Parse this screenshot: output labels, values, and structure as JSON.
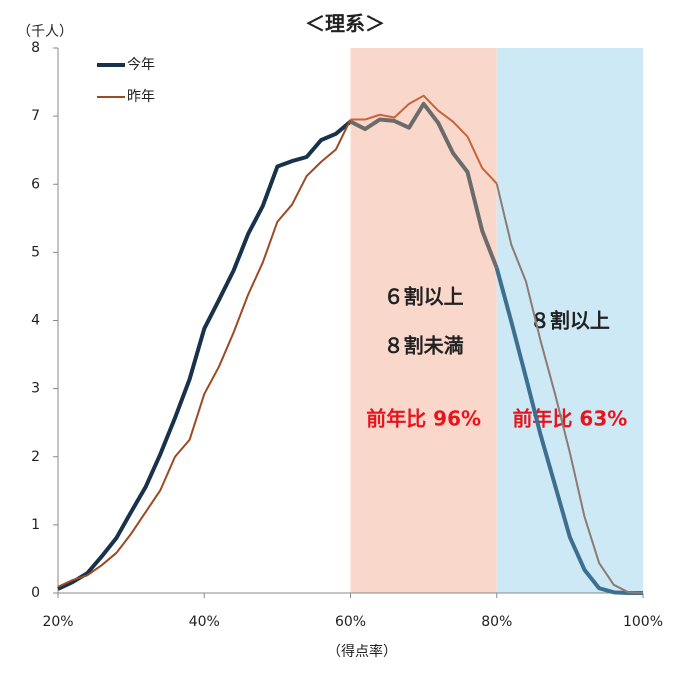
{
  "chart_data": {
    "type": "line",
    "title": "＜理系＞",
    "y_label": "（千人）",
    "x_label": "（得点率）",
    "x": [
      20,
      22,
      24,
      26,
      28,
      30,
      32,
      34,
      36,
      38,
      40,
      42,
      44,
      46,
      48,
      50,
      52,
      54,
      56,
      58,
      60,
      62,
      64,
      66,
      68,
      70,
      72,
      74,
      76,
      78,
      80,
      82,
      84,
      86,
      88,
      90,
      92,
      94,
      96,
      98,
      100
    ],
    "xlim": [
      20,
      100
    ],
    "xticks": [
      {
        "value": 20,
        "label": "20%"
      },
      {
        "value": 40,
        "label": "40%"
      },
      {
        "value": 60,
        "label": "60%"
      },
      {
        "value": 80,
        "label": "80%"
      },
      {
        "value": 100,
        "label": "100%"
      }
    ],
    "ylim": [
      0,
      8
    ],
    "yticks": [
      0,
      1,
      2,
      3,
      4,
      5,
      6,
      7,
      8
    ],
    "legend": "upper left",
    "regions": [
      {
        "xlim": [
          60,
          80
        ],
        "color": "#f9d8cb",
        "labels": [
          "６割以上",
          "８割未満"
        ],
        "note": "前年比 96%",
        "note_color": "#e8141c"
      },
      {
        "xlim": [
          80,
          100
        ],
        "color": "#cde9f5",
        "labels": [
          "８割以上"
        ],
        "note": "前年比 63%",
        "note_color": "#e8141c"
      }
    ],
    "series": [
      {
        "name": "今年",
        "color": "#17324a",
        "segment_colors": [
          "#17324a",
          "#6b6b6b",
          "#3d6f8f"
        ],
        "width": 4,
        "values": [
          0.06,
          0.16,
          0.29,
          0.54,
          0.81,
          1.19,
          1.56,
          2.04,
          2.57,
          3.14,
          3.88,
          4.3,
          4.73,
          5.27,
          5.68,
          6.26,
          6.34,
          6.4,
          6.65,
          6.74,
          6.92,
          6.81,
          6.95,
          6.93,
          6.83,
          7.18,
          6.9,
          6.46,
          6.18,
          5.32,
          4.77,
          3.98,
          3.16,
          2.32,
          1.57,
          0.82,
          0.34,
          0.07,
          0.01,
          0,
          0
        ]
      },
      {
        "name": "昨年",
        "color": "#9b4a22",
        "segment_colors": [
          "#9b4a22",
          "#c8643c",
          "#8a7c74"
        ],
        "width": 2,
        "values": [
          0.09,
          0.19,
          0.26,
          0.41,
          0.59,
          0.87,
          1.19,
          1.51,
          2.0,
          2.25,
          2.92,
          3.32,
          3.82,
          4.38,
          4.85,
          5.45,
          5.7,
          6.12,
          6.33,
          6.51,
          6.95,
          6.95,
          7.02,
          6.98,
          7.18,
          7.3,
          7.08,
          6.92,
          6.7,
          6.24,
          6.01,
          5.11,
          4.57,
          3.7,
          2.91,
          2.06,
          1.12,
          0.44,
          0.12,
          0.01,
          0
        ]
      }
    ]
  }
}
